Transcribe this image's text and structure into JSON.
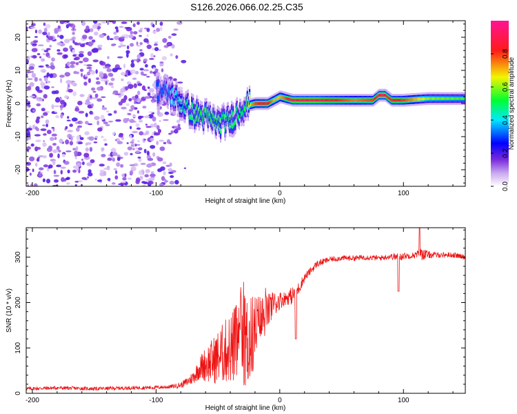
{
  "title": "S126.2026.066.02.25.C35",
  "chart_data": [
    {
      "type": "heatmap",
      "name": "spectrogram",
      "xlabel": "Height of straight line (km)",
      "ylabel": "Frequency (Hz)",
      "xlim": [
        -205,
        150
      ],
      "ylim": [
        -25,
        25
      ],
      "x_ticks": [
        "-200",
        "-100",
        "0",
        "100"
      ],
      "y_ticks": [
        "-20",
        "-10",
        "0",
        "10",
        "20"
      ],
      "colorbar": {
        "label": "Normalized spectral amplitude",
        "range": [
          0,
          1
        ],
        "ticks": [
          "0.0",
          "0.2",
          "0.4",
          "0.6",
          "0.8"
        ]
      },
      "noise_region_x": [
        -205,
        -75
      ],
      "signal_band": {
        "x": [
          -100,
          -90,
          -80,
          -70,
          -60,
          -50,
          -40,
          -30,
          -20,
          -10,
          -5,
          0,
          10,
          30,
          60,
          75,
          80,
          85,
          90,
          100,
          120,
          150
        ],
        "freq": [
          4,
          3,
          0,
          -3,
          -4,
          -6,
          -5,
          -1,
          0,
          0,
          1,
          2,
          1,
          1,
          1,
          1,
          2.5,
          2.5,
          1,
          1,
          1.5,
          1.5
        ],
        "peak_amplitude": [
          0.3,
          0.35,
          0.45,
          0.5,
          0.55,
          0.5,
          0.5,
          0.5,
          0.8,
          0.85,
          0.7,
          0.7,
          0.9,
          0.9,
          0.75,
          0.8,
          0.9,
          0.9,
          0.85,
          0.8,
          0.6,
          0.55
        ]
      },
      "colors": [
        "#ffffff",
        "#b090ee",
        "#7a2cdc",
        "#0010ff",
        "#00e0ff",
        "#00ff40",
        "#f0f000",
        "#ff2020",
        "#ff1493"
      ]
    },
    {
      "type": "line",
      "name": "snr",
      "xlabel": "Height of straight line (km)",
      "ylabel": "SNR (10 * v/v)",
      "xlim": [
        -205,
        150
      ],
      "ylim": [
        0,
        365
      ],
      "x_ticks": [
        "-200",
        "-100",
        "0",
        "100"
      ],
      "y_ticks": [
        "0",
        "100",
        "200",
        "300"
      ],
      "color": "#ee1111",
      "series": [
        {
          "name": "SNR",
          "x": [
            -205,
            -180,
            -150,
            -120,
            -100,
            -90,
            -80,
            -75,
            -70,
            -65,
            -60,
            -55,
            -50,
            -45,
            -40,
            -35,
            -30,
            -25,
            -20,
            -15,
            -10,
            -5,
            0,
            5,
            10,
            15,
            20,
            25,
            30,
            40,
            50,
            60,
            70,
            80,
            90,
            95,
            100,
            105,
            110,
            115,
            120,
            130,
            140,
            150
          ],
          "y": [
            10,
            12,
            10,
            12,
            13,
            14,
            18,
            25,
            35,
            55,
            65,
            70,
            80,
            90,
            100,
            110,
            120,
            110,
            140,
            160,
            180,
            195,
            205,
            210,
            215,
            230,
            255,
            270,
            285,
            295,
            298,
            298,
            300,
            298,
            302,
            300,
            303,
            303,
            305,
            308,
            305,
            305,
            305,
            300
          ],
          "noise": [
            4,
            4,
            4,
            4,
            4,
            4,
            6,
            10,
            15,
            25,
            40,
            50,
            60,
            70,
            80,
            90,
            100,
            110,
            80,
            60,
            40,
            30,
            20,
            15,
            20,
            15,
            10,
            8,
            8,
            6,
            6,
            6,
            6,
            6,
            6,
            10,
            8,
            6,
            8,
            15,
            8,
            6,
            6,
            6
          ]
        }
      ]
    }
  ]
}
